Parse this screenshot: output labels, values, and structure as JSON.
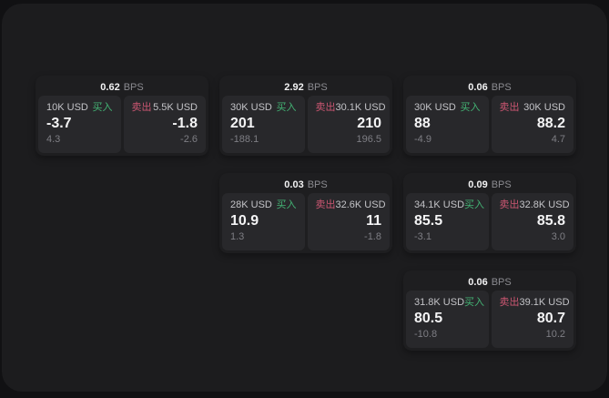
{
  "labels": {
    "bps_unit": "BPS",
    "buy": "买入",
    "sell": "卖出"
  },
  "colors": {
    "buy_accent": "#43b374",
    "sell_accent": "#cb5672",
    "surface": "#1c1c1e",
    "card": "#1e1e20",
    "panel": "#28282b"
  },
  "cards": [
    {
      "bps": "0.62",
      "buy": {
        "amount": "10K USD",
        "value": "-3.7",
        "sub": "4.3"
      },
      "sell": {
        "amount": "5.5K USD",
        "value": "-1.8",
        "sub": "-2.6"
      }
    },
    {
      "bps": "2.92",
      "buy": {
        "amount": "30K USD",
        "value": "201",
        "sub": "-188.1"
      },
      "sell": {
        "amount": "30.1K USD",
        "value": "210",
        "sub": "196.5"
      }
    },
    {
      "bps": "0.06",
      "buy": {
        "amount": "30K USD",
        "value": "88",
        "sub": "-4.9"
      },
      "sell": {
        "amount": "30K USD",
        "value": "88.2",
        "sub": "4.7"
      }
    },
    {
      "bps": "0.03",
      "buy": {
        "amount": "28K USD",
        "value": "10.9",
        "sub": "1.3"
      },
      "sell": {
        "amount": "32.6K USD",
        "value": "11",
        "sub": "-1.8"
      }
    },
    {
      "bps": "0.09",
      "buy": {
        "amount": "34.1K USD",
        "value": "85.5",
        "sub": "-3.1"
      },
      "sell": {
        "amount": "32.8K USD",
        "value": "85.8",
        "sub": "3.0"
      }
    },
    {
      "bps": "0.06",
      "buy": {
        "amount": "31.8K USD",
        "value": "80.5",
        "sub": "-10.8"
      },
      "sell": {
        "amount": "39.1K USD",
        "value": "80.7",
        "sub": "10.2"
      }
    }
  ]
}
